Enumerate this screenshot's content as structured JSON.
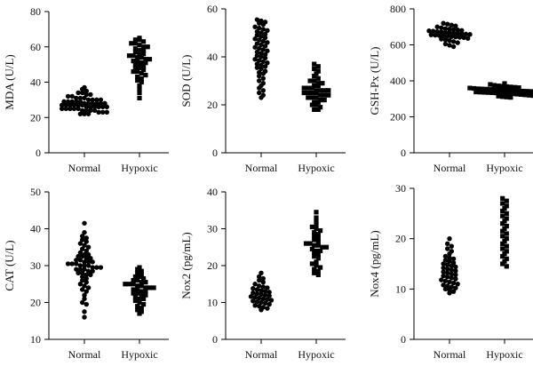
{
  "figure": {
    "background": "#ffffff",
    "ink": "#000000"
  },
  "chart_data": [
    {
      "type": "scatter",
      "ylabel": "MDA (U/L)",
      "categories": [
        "Normal",
        "Hypoxic"
      ],
      "yticks": [
        0,
        20,
        40,
        60,
        80
      ],
      "ylim": [
        0,
        80
      ],
      "series": [
        {
          "category": "Normal",
          "marker": "circle",
          "values": [
            37,
            36,
            35,
            34,
            34,
            33,
            33,
            32,
            32,
            31,
            31,
            31,
            30,
            30,
            30,
            30,
            29,
            29,
            29,
            29,
            29,
            28,
            28,
            28,
            28,
            28,
            28,
            27,
            27,
            27,
            27,
            27,
            27,
            26,
            26,
            26,
            26,
            26,
            26,
            25,
            25,
            25,
            25,
            25,
            24,
            24,
            24,
            24,
            23,
            23,
            23,
            22,
            22,
            22
          ]
        },
        {
          "category": "Hypoxic",
          "marker": "square",
          "values": [
            65,
            64,
            64,
            63,
            62,
            62,
            61,
            60,
            60,
            59,
            58,
            58,
            57,
            56,
            56,
            55,
            55,
            54,
            54,
            53,
            53,
            52,
            52,
            51,
            51,
            50,
            50,
            49,
            48,
            48,
            47,
            46,
            46,
            45,
            44,
            43,
            42,
            41,
            40,
            38,
            36,
            34,
            31
          ]
        }
      ]
    },
    {
      "type": "scatter",
      "ylabel": "SOD (U/L)",
      "categories": [
        "Normal",
        "Hypoxic"
      ],
      "yticks": [
        0,
        20,
        40,
        60
      ],
      "ylim": [
        0,
        60
      ],
      "series": [
        {
          "category": "Normal",
          "marker": "circle",
          "values": [
            55.5,
            55,
            54.5,
            54,
            53.5,
            52.5,
            52,
            51.5,
            51,
            50.5,
            50,
            49.5,
            49,
            48.5,
            48,
            47.5,
            47,
            46.5,
            46,
            45.5,
            45,
            44.5,
            44,
            43.5,
            43,
            42.5,
            42,
            41.5,
            41,
            40.5,
            40,
            39.5,
            39,
            38.5,
            38,
            37.5,
            37,
            36.5,
            36,
            35.5,
            35,
            34,
            33.5,
            33,
            32,
            31,
            30,
            29,
            28,
            27,
            26,
            25,
            24,
            23
          ]
        },
        {
          "category": "Hypoxic",
          "marker": "square",
          "values": [
            37,
            36,
            35,
            34,
            33,
            32,
            31,
            30,
            30,
            29,
            29,
            28,
            28,
            27,
            27,
            27,
            26,
            26,
            26,
            26,
            25,
            25,
            25,
            25,
            24,
            24,
            24,
            23,
            23,
            23,
            22,
            22,
            21,
            21,
            20,
            20,
            19,
            18,
            18
          ]
        }
      ]
    },
    {
      "type": "scatter",
      "ylabel": "GSH-Px (U/L)",
      "categories": [
        "Normal",
        "Hypoxic"
      ],
      "yticks": [
        0,
        200,
        400,
        600,
        800
      ],
      "ylim": [
        0,
        800
      ],
      "series": [
        {
          "category": "Normal",
          "marker": "circle",
          "values": [
            720,
            715,
            710,
            705,
            700,
            695,
            690,
            688,
            685,
            683,
            680,
            678,
            676,
            674,
            672,
            670,
            668,
            666,
            664,
            662,
            660,
            658,
            656,
            654,
            652,
            650,
            648,
            646,
            644,
            642,
            640,
            636,
            632,
            628,
            624,
            618,
            612,
            605,
            598,
            590
          ]
        },
        {
          "category": "Hypoxic",
          "marker": "square",
          "values": [
            385,
            380,
            375,
            372,
            370,
            368,
            366,
            364,
            362,
            360,
            358,
            356,
            355,
            354,
            352,
            350,
            349,
            348,
            347,
            346,
            345,
            344,
            343,
            342,
            341,
            340,
            339,
            338,
            337,
            336,
            335,
            334,
            333,
            332,
            331,
            330,
            328,
            326,
            324,
            322,
            320,
            318,
            315,
            312,
            310,
            308
          ]
        }
      ]
    },
    {
      "type": "scatter",
      "ylabel": "CAT (U/L)",
      "categories": [
        "Normal",
        "Hypoxic"
      ],
      "yticks": [
        10,
        20,
        30,
        40,
        50
      ],
      "ylim": [
        10,
        50
      ],
      "series": [
        {
          "category": "Normal",
          "marker": "circle",
          "values": [
            41.5,
            39,
            38,
            37.5,
            37,
            36.5,
            36,
            35.5,
            35,
            34.5,
            34,
            33.5,
            33,
            33,
            32.5,
            32.5,
            32,
            32,
            31.5,
            31.5,
            31,
            31,
            31,
            30.5,
            30.5,
            30.5,
            30,
            30,
            30,
            29.5,
            29.5,
            29.5,
            29,
            29,
            29,
            28.5,
            28.5,
            28,
            28,
            27.5,
            27.5,
            27,
            26.5,
            26,
            25.5,
            25,
            24.5,
            24,
            23.5,
            23,
            22,
            21,
            20,
            19.5,
            17.5,
            16
          ]
        },
        {
          "category": "Hypoxic",
          "marker": "square",
          "values": [
            29.5,
            29,
            28.5,
            28,
            27.5,
            27,
            27,
            26.5,
            26,
            26,
            25.5,
            25.5,
            25,
            25,
            25,
            24.5,
            24.5,
            24,
            24,
            24,
            23.5,
            23.5,
            23,
            23,
            22.5,
            22.5,
            22,
            22,
            21.5,
            21,
            21,
            20.5,
            20,
            19.5,
            19,
            18.5,
            18,
            17.5,
            17
          ]
        }
      ]
    },
    {
      "type": "scatter",
      "ylabel": "Nox2 (pg/mL)",
      "categories": [
        "Normal",
        "Hypoxic"
      ],
      "yticks": [
        0,
        10,
        20,
        30,
        40
      ],
      "ylim": [
        0,
        40
      ],
      "series": [
        {
          "category": "Normal",
          "marker": "circle",
          "values": [
            18,
            17,
            16.5,
            16,
            15.5,
            15,
            14.5,
            14.2,
            14,
            13.8,
            13.5,
            13.2,
            13,
            12.8,
            12.6,
            12.4,
            12.2,
            12,
            11.8,
            11.6,
            11.4,
            11.2,
            11,
            10.8,
            10.6,
            10.4,
            10.2,
            10,
            9.8,
            9.5,
            9.2,
            9,
            8.7,
            8.4,
            8
          ]
        },
        {
          "category": "Hypoxic",
          "marker": "square",
          "values": [
            34.5,
            33,
            32,
            31,
            30.5,
            30,
            29.5,
            29,
            28.5,
            28,
            27.5,
            27,
            26.5,
            26,
            26,
            25.5,
            25.5,
            25,
            25,
            24.5,
            24,
            24,
            23.5,
            23,
            22.5,
            22,
            21,
            20.5,
            20,
            19.5,
            19,
            18.5,
            18,
            17.5
          ]
        }
      ]
    },
    {
      "type": "scatter",
      "ylabel": "Nox4 (pg/mL)",
      "categories": [
        "Normal",
        "Hypoxic"
      ],
      "yticks": [
        0,
        10,
        20,
        30
      ],
      "ylim": [
        0,
        30
      ],
      "series": [
        {
          "category": "Normal",
          "marker": "circle",
          "values": [
            20,
            19,
            18.5,
            18,
            17.5,
            17,
            16.5,
            16.2,
            16,
            15.7,
            15.5,
            15.2,
            15,
            14.8,
            14.6,
            14.4,
            14.2,
            14,
            13.8,
            13.6,
            13.4,
            13.2,
            13,
            12.8,
            12.6,
            12.4,
            12.2,
            12,
            11.8,
            11.6,
            11.4,
            11.2,
            11,
            10.8,
            10.6,
            10.4,
            10.2,
            10,
            9.8,
            9.5,
            9.2
          ]
        },
        {
          "category": "Hypoxic",
          "marker": "square",
          "values": [
            28,
            27.5,
            27,
            26.5,
            26,
            25.5,
            25,
            24.5,
            24,
            23.5,
            23,
            22.5,
            22,
            21.5,
            21,
            20.5,
            20,
            19.5,
            19,
            18.5,
            18,
            17.5,
            17,
            16.5,
            16,
            15.5,
            15,
            14.5
          ]
        }
      ]
    }
  ]
}
